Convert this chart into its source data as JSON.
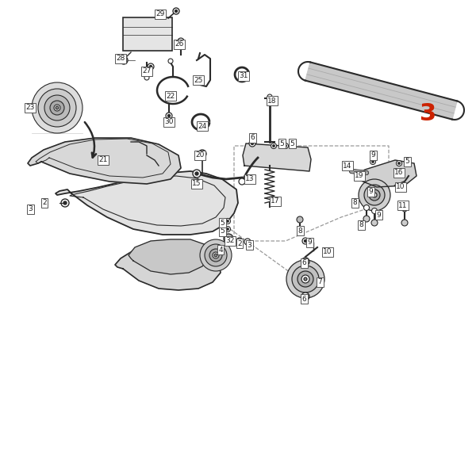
{
  "bg_color": "#ffffff",
  "line_color": "#2a2a2a",
  "gray_fill": "#d8d8d8",
  "light_fill": "#eeeeee",
  "highlight_color": "#cc2200",
  "figsize": [
    6.0,
    5.74
  ],
  "dpi": 100
}
